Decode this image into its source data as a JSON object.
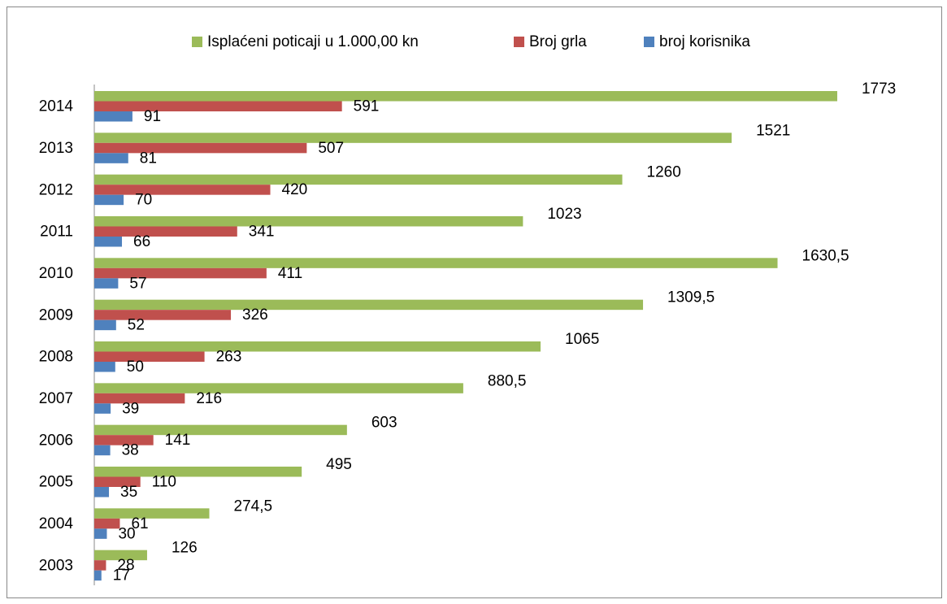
{
  "chart_data": {
    "type": "hbar",
    "categories": [
      "2003",
      "2004",
      "2005",
      "2006",
      "2007",
      "2008",
      "2009",
      "2010",
      "2011",
      "2012",
      "2013",
      "2014"
    ],
    "series": [
      {
        "name": "Isplaćeni poticaji u 1.000,00 kn",
        "color": "#9bbb59",
        "values": [
          126,
          274.5,
          495,
          603,
          880.5,
          1065,
          1309.5,
          1630.5,
          1023,
          1260,
          1521,
          1773
        ],
        "value_labels": [
          "126",
          "274,5",
          "495",
          "603",
          "880,5",
          "1065",
          "1309,5",
          "1630,5",
          "1023",
          "1260",
          "1521",
          "1773"
        ]
      },
      {
        "name": "Broj grla",
        "color": "#c0504d",
        "values": [
          28,
          61,
          110,
          141,
          216,
          263,
          326,
          411,
          341,
          420,
          507,
          591
        ]
      },
      {
        "name": "broj korisnika",
        "color": "#4f81bd",
        "values": [
          17,
          30,
          35,
          38,
          39,
          50,
          52,
          57,
          66,
          70,
          81,
          91
        ]
      }
    ],
    "xlim": [
      0,
      2000
    ]
  }
}
